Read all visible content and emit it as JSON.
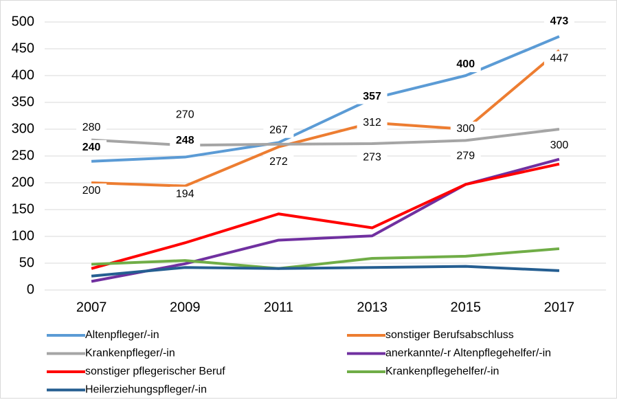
{
  "chart_data": {
    "type": "line",
    "categories": [
      "2007",
      "2009",
      "2011",
      "2013",
      "2015",
      "2017"
    ],
    "ylim": [
      0,
      500
    ],
    "yticks": [
      0,
      50,
      100,
      150,
      200,
      250,
      300,
      350,
      400,
      450,
      500
    ],
    "grid": true,
    "series": [
      {
        "name": "Altenpfleger/-in",
        "color": "#5b9bd5",
        "values": [
          240,
          248,
          275,
          357,
          400,
          473
        ],
        "value_labels": [
          "240",
          "248",
          null,
          "357",
          "400",
          "473"
        ]
      },
      {
        "name": "sonstiger Berufsabschluss",
        "color": "#ed7d31",
        "values": [
          200,
          194,
          267,
          312,
          300,
          447
        ]
      },
      {
        "name": "Krankenpfleger/-in",
        "color": "#a5a5a5",
        "values": [
          280,
          270,
          272,
          273,
          279,
          300
        ]
      },
      {
        "name": "anerkannte/-r Altenpflegehelfer/-in",
        "color": "#7030a0",
        "values": [
          16,
          49,
          93,
          101,
          197,
          244
        ]
      },
      {
        "name": "sonstiger pflegerischer Beruf",
        "color": "#ff0000",
        "values": [
          40,
          88,
          142,
          116,
          197,
          235
        ]
      },
      {
        "name": "Krankenpflegehelfer/-in",
        "color": "#70ad47",
        "values": [
          48,
          55,
          40,
          59,
          63,
          77
        ]
      },
      {
        "name": "Heilerziehungspfleger/-in",
        "color": "#255e91",
        "values": [
          26,
          42,
          40,
          42,
          44,
          36
        ]
      }
    ],
    "legend": "bottom"
  }
}
